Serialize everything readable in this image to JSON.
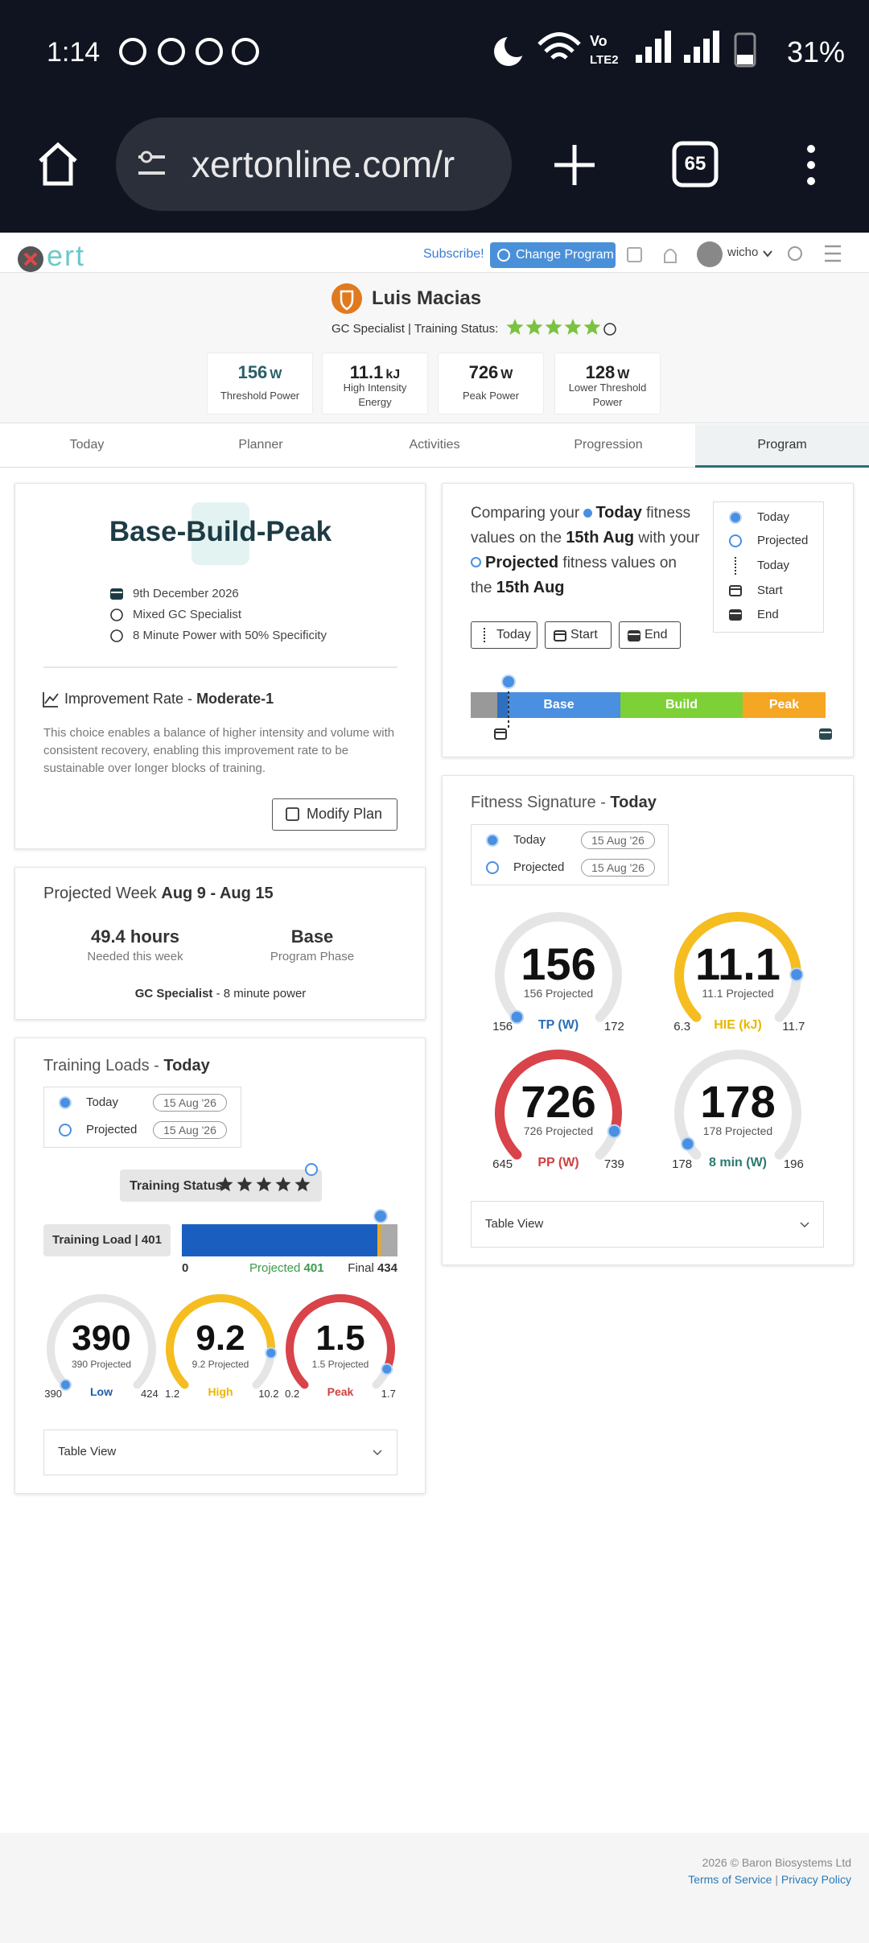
{
  "status_bar": {
    "time": "1:14",
    "network_top": "Vo",
    "network_bottom": "LTE2",
    "battery": "31%"
  },
  "browser": {
    "url": "xertonline.com/r",
    "tab_count": "65"
  },
  "header": {
    "logo": "ert",
    "subscribe": "Subscribe!",
    "change_program": "Change Program",
    "user": "wicho"
  },
  "profile": {
    "name": "Luis Macias",
    "status_label": "GC Specialist | Training Status:",
    "stats": [
      {
        "value": "156",
        "unit": "W",
        "label": "Threshold Power"
      },
      {
        "value": "11.1",
        "unit": "kJ",
        "label": "High Intensity Energy"
      },
      {
        "value": "726",
        "unit": "W",
        "label": "Peak Power"
      },
      {
        "value": "128",
        "unit": "W",
        "label": "Lower Threshold Power"
      }
    ]
  },
  "tabs": [
    "Today",
    "Planner",
    "Activities",
    "Progression",
    "Program"
  ],
  "plan": {
    "title": "Base-Build-Peak",
    "items": [
      "9th December 2026",
      "Mixed GC Specialist",
      "8 Minute Power with 50% Specificity"
    ],
    "improvement_label": "Improvement Rate - ",
    "improvement_value": "Moderate-1",
    "description": "This choice enables a balance of higher intensity and volume with consistent recovery, enabling this improvement rate to be sustainable over longer blocks of training.",
    "button": "Modify Plan"
  },
  "week": {
    "title": "Projected Week ",
    "dates": "Aug 9 - Aug 15",
    "hours": "49.4 hours",
    "hours_label": "Needed this week",
    "phase": "Base",
    "phase_label": "Program Phase",
    "focus_strong": "GC Specialist",
    "focus_rest": " - 8 minute power"
  },
  "loads": {
    "title": "Training Loads - ",
    "title_strong": "Today",
    "legend": [
      {
        "label": "Today",
        "date": "15 Aug '26"
      },
      {
        "label": "Projected",
        "date": "15 Aug '26"
      }
    ],
    "status": "Training Status",
    "load_label": "Training Load | 401",
    "bar_min": "0",
    "projected_label": "Projected ",
    "projected_value": "401",
    "final_label": "Final ",
    "final_value": "434",
    "gauges": [
      {
        "value": "390",
        "projected": "390 Projected",
        "min": "390",
        "max": "424",
        "label": "Low"
      },
      {
        "value": "9.2",
        "projected": "9.2 Projected",
        "min": "1.2",
        "max": "10.2",
        "label": "High"
      },
      {
        "value": "1.5",
        "projected": "1.5 Projected",
        "min": "0.2",
        "max": "1.7",
        "label": "Peak"
      }
    ],
    "table_view": "Table View"
  },
  "compare": {
    "text": [
      "Comparing your ",
      "Today",
      " fitness values on the ",
      "15th Aug",
      " with your ",
      "Projected",
      " fitness values on the ",
      "15th Aug"
    ],
    "legend": [
      "Today",
      "Projected",
      "Today",
      "Start",
      "End"
    ],
    "buttons": [
      "Today",
      "Start",
      "End"
    ],
    "phases": [
      "Base",
      "Build",
      "Peak"
    ]
  },
  "signature": {
    "title": "Fitness Signature - ",
    "title_strong": "Today",
    "legend": [
      {
        "label": "Today",
        "date": "15 Aug '26"
      },
      {
        "label": "Projected",
        "date": "15 Aug '26"
      }
    ],
    "gauges": [
      {
        "value": "156",
        "projected": "156 Projected",
        "min": "156",
        "max": "172",
        "label": "TP (W)"
      },
      {
        "value": "11.1",
        "projected": "11.1 Projected",
        "min": "6.3",
        "max": "11.7",
        "label": "HIE (kJ)"
      },
      {
        "value": "726",
        "projected": "726 Projected",
        "min": "645",
        "max": "739",
        "label": "PP (W)"
      },
      {
        "value": "178",
        "projected": "178 Projected",
        "min": "178",
        "max": "196",
        "label": "8 min (W)"
      }
    ],
    "table_view": "Table View"
  },
  "footer": {
    "copyright": "2026 © Baron Biosystems Ltd",
    "terms": "Terms of Service",
    "separator": " | ",
    "privacy": "Privacy Policy"
  }
}
